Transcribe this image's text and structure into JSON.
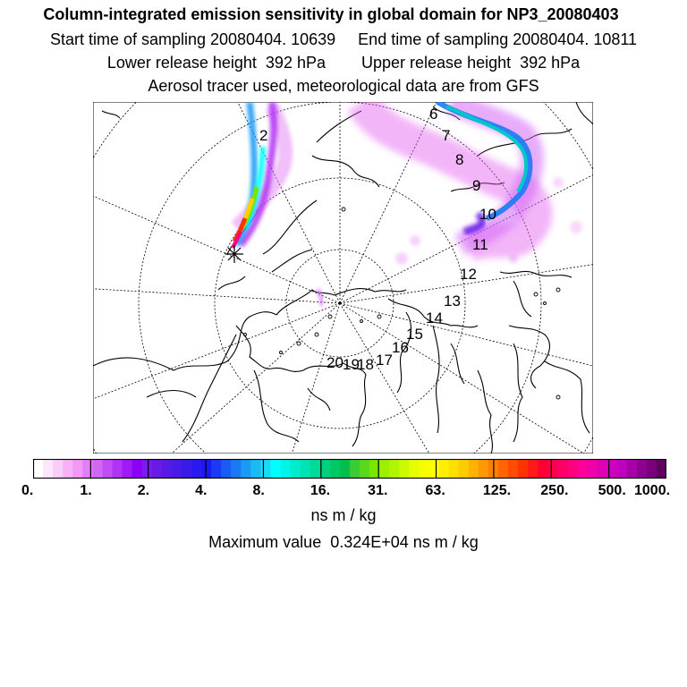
{
  "header": {
    "title": "Column-integrated emission sensitivity in global domain for NP3_20080403",
    "start_label": "Start time of sampling 20080404. 10639",
    "end_label": "End time of sampling 20080404. 10811",
    "lower_label": "Lower release height  392 hPa",
    "upper_label": "Upper release height  392 hPa",
    "tracer_line": "Aerosol tracer used, meteorological data are from GFS"
  },
  "map": {
    "projection": "polar stereographic (north)",
    "day_labels": [
      "2",
      "6",
      "7",
      "8",
      "9",
      "10",
      "11",
      "12",
      "13",
      "14",
      "15",
      "16",
      "17",
      "18",
      "19",
      "20"
    ],
    "release_marker": "star"
  },
  "colorbar": {
    "tick_labels": [
      "0.",
      "1.",
      "2.",
      "4.",
      "8.",
      "16.",
      "31.",
      "63.",
      "125.",
      "250.",
      "500.",
      "1000."
    ],
    "unit": "ns m / kg",
    "colors": [
      "#ffffff",
      "#fde6fd",
      "#f9ccf9",
      "#f5b2f5",
      "#f199f5",
      "#e37ff5",
      "#d466f5",
      "#c24cf5",
      "#b233f5",
      "#a01af5",
      "#8b00f5",
      "#7a1af0",
      "#6a1ae6",
      "#5a1ae6",
      "#4a1ae6",
      "#3a1ae6",
      "#2a1af0",
      "#1a1af5",
      "#1a3af5",
      "#1a5af5",
      "#1a7af5",
      "#1a9af5",
      "#1abaf5",
      "#1adaf5",
      "#00ffff",
      "#00f5e6",
      "#00eccc",
      "#00e3b3",
      "#00da99",
      "#00d17f",
      "#00c866",
      "#00bf4c",
      "#3acc33",
      "#5ad91a",
      "#7ae600",
      "#9af000",
      "#b3f500",
      "#ccfa00",
      "#e6ff00",
      "#f5ff00",
      "#ffff00",
      "#fff000",
      "#ffe000",
      "#ffcc00",
      "#ffb300",
      "#ff9900",
      "#ff7f00",
      "#ff6600",
      "#ff4c00",
      "#ff3300",
      "#ff1a1a",
      "#ff0033",
      "#ff004c",
      "#ff0066",
      "#ff007f",
      "#ff0099",
      "#f000a8",
      "#e000b3",
      "#d000bf",
      "#bf00bf",
      "#a800a8",
      "#900090",
      "#7a007a",
      "#600060"
    ]
  },
  "maximum": {
    "text": "Maximum value  0.324E+04 ns m / kg"
  }
}
